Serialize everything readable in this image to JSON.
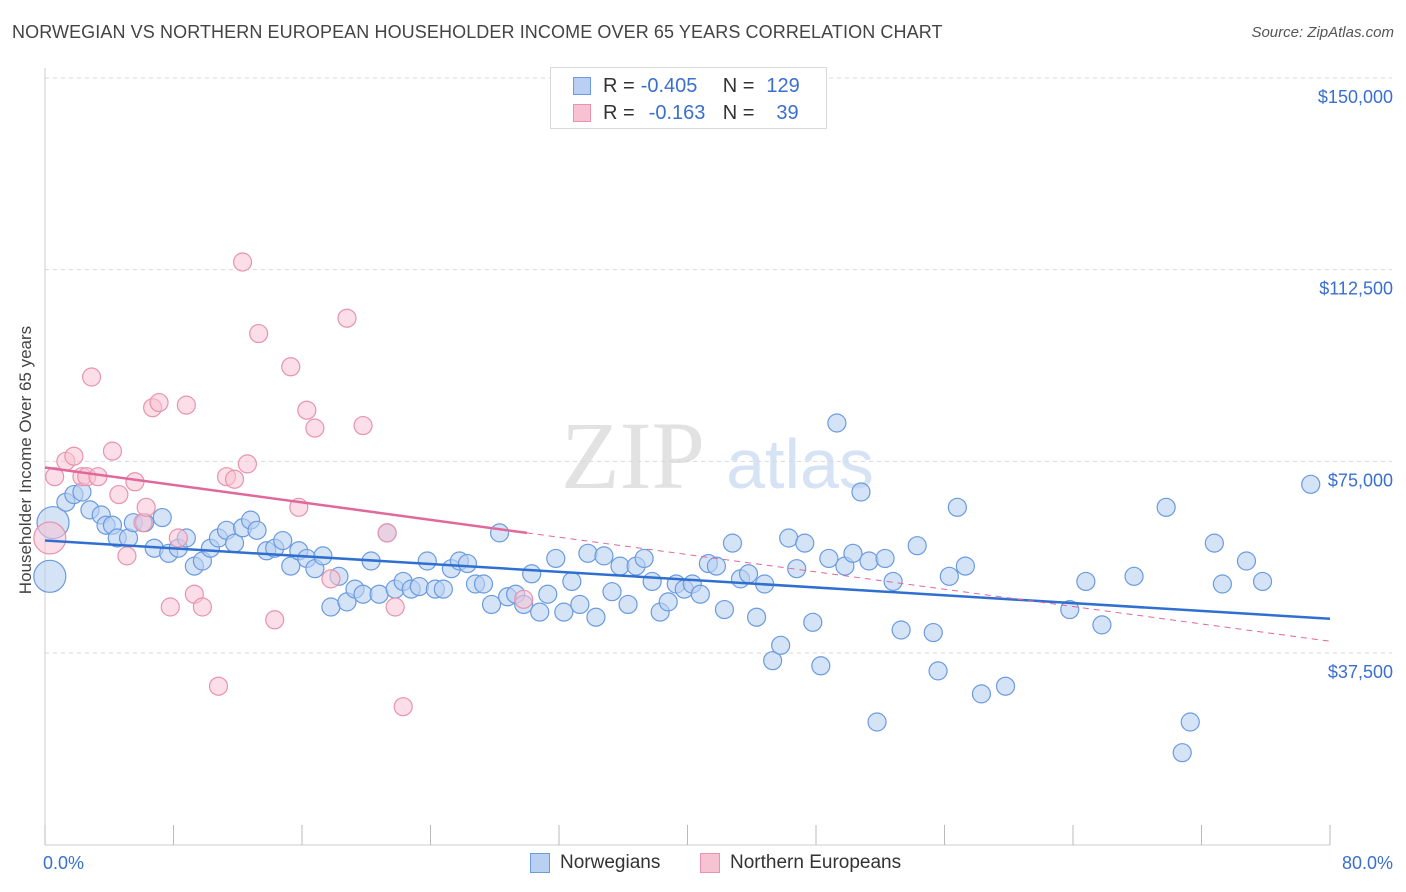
{
  "title": "NORWEGIAN VS NORTHERN EUROPEAN HOUSEHOLDER INCOME OVER 65 YEARS CORRELATION CHART",
  "source": "Source: ZipAtlas.com",
  "watermark": {
    "zip": "ZIP",
    "atlas": "atlas"
  },
  "legend_top": [
    {
      "r_label": "R =",
      "r_value": "-0.405",
      "n_label": "N =",
      "n_value": "129"
    },
    {
      "r_label": "R =",
      "r_value": "-0.163",
      "n_label": "N =",
      "n_value": "39"
    }
  ],
  "colors": {
    "norwegians_fill": "#b9d0f2",
    "norwegians_stroke": "#6a9be0",
    "norwegians_line": "#2e6fd0",
    "northern_fill": "#f7c3d3",
    "northern_stroke": "#e893ad",
    "northern_line": "#e0689a",
    "axis_value_text": "#3a6fd0",
    "grid": "#d8d8d8"
  },
  "chart_data": {
    "type": "scatter",
    "title": "NORWEGIAN VS NORTHERN EUROPEAN HOUSEHOLDER INCOME OVER 65 YEARS CORRELATION CHART",
    "xlabel": "",
    "ylabel": "Householder Income Over 65 years",
    "xlim": [
      0,
      80
    ],
    "ylim": [
      0,
      155000
    ],
    "x_tick_labels": [
      "0.0%",
      "80.0%"
    ],
    "y_ticks": [
      37500,
      75000,
      112500,
      150000
    ],
    "y_tick_labels": [
      "$37,500",
      "$75,000",
      "$112,500",
      "$150,000"
    ],
    "grid": "horizontal dashed",
    "legend_position": "top-center and bottom",
    "series": [
      {
        "name": "Norwegians",
        "r": -0.405,
        "n": 129,
        "trend": {
          "x": [
            0,
            80
          ],
          "y": [
            59500,
            44200
          ]
        },
        "points": [
          [
            0.3,
            52500
          ],
          [
            0.5,
            63000
          ],
          [
            1.3,
            67000
          ],
          [
            1.8,
            68500
          ],
          [
            2.3,
            69000
          ],
          [
            2.8,
            65500
          ],
          [
            3.5,
            64500
          ],
          [
            3.8,
            62500
          ],
          [
            4.2,
            62500
          ],
          [
            4.5,
            60000
          ],
          [
            5.2,
            60000
          ],
          [
            5.5,
            63000
          ],
          [
            6.2,
            63000
          ],
          [
            6.8,
            58000
          ],
          [
            7.3,
            64000
          ],
          [
            7.7,
            57000
          ],
          [
            8.3,
            58000
          ],
          [
            8.8,
            60000
          ],
          [
            9.3,
            54500
          ],
          [
            9.8,
            55500
          ],
          [
            10.3,
            58000
          ],
          [
            10.8,
            60000
          ],
          [
            11.3,
            61500
          ],
          [
            11.8,
            59000
          ],
          [
            12.3,
            62000
          ],
          [
            12.8,
            63500
          ],
          [
            13.2,
            61500
          ],
          [
            13.8,
            57500
          ],
          [
            14.3,
            58000
          ],
          [
            14.8,
            59500
          ],
          [
            15.3,
            54500
          ],
          [
            15.8,
            57500
          ],
          [
            16.3,
            56000
          ],
          [
            16.8,
            54000
          ],
          [
            17.3,
            56500
          ],
          [
            17.8,
            46500
          ],
          [
            18.3,
            52500
          ],
          [
            18.8,
            47500
          ],
          [
            19.3,
            50000
          ],
          [
            19.8,
            49000
          ],
          [
            20.3,
            55500
          ],
          [
            20.8,
            49000
          ],
          [
            21.3,
            61000
          ],
          [
            21.8,
            50000
          ],
          [
            22.3,
            51500
          ],
          [
            22.8,
            50000
          ],
          [
            23.3,
            50500
          ],
          [
            23.8,
            55500
          ],
          [
            24.3,
            50000
          ],
          [
            24.8,
            50000
          ],
          [
            25.3,
            54000
          ],
          [
            25.8,
            55500
          ],
          [
            26.3,
            55000
          ],
          [
            26.8,
            51000
          ],
          [
            27.3,
            51000
          ],
          [
            27.8,
            47000
          ],
          [
            28.3,
            61000
          ],
          [
            28.8,
            48500
          ],
          [
            29.3,
            49000
          ],
          [
            29.8,
            47000
          ],
          [
            30.3,
            53000
          ],
          [
            30.8,
            45500
          ],
          [
            31.3,
            49000
          ],
          [
            31.8,
            56000
          ],
          [
            32.3,
            45500
          ],
          [
            32.8,
            51500
          ],
          [
            33.3,
            47000
          ],
          [
            33.8,
            57000
          ],
          [
            34.3,
            44500
          ],
          [
            34.8,
            56500
          ],
          [
            35.3,
            49500
          ],
          [
            35.8,
            54500
          ],
          [
            36.3,
            47000
          ],
          [
            36.8,
            54500
          ],
          [
            37.3,
            56000
          ],
          [
            37.8,
            51500
          ],
          [
            38.3,
            45500
          ],
          [
            38.8,
            47500
          ],
          [
            39.3,
            51000
          ],
          [
            39.8,
            50000
          ],
          [
            40.3,
            51000
          ],
          [
            40.8,
            49000
          ],
          [
            41.3,
            55000
          ],
          [
            41.8,
            54500
          ],
          [
            42.3,
            46000
          ],
          [
            42.8,
            59000
          ],
          [
            43.3,
            52000
          ],
          [
            43.8,
            53000
          ],
          [
            44.3,
            44500
          ],
          [
            44.8,
            51000
          ],
          [
            45.3,
            36000
          ],
          [
            45.8,
            39000
          ],
          [
            46.3,
            60000
          ],
          [
            46.8,
            54000
          ],
          [
            47.3,
            59000
          ],
          [
            47.8,
            43500
          ],
          [
            48.3,
            35000
          ],
          [
            48.8,
            56000
          ],
          [
            49.3,
            82500
          ],
          [
            49.8,
            54500
          ],
          [
            50.3,
            57000
          ],
          [
            50.8,
            69000
          ],
          [
            51.3,
            55500
          ],
          [
            51.8,
            24000
          ],
          [
            52.3,
            56000
          ],
          [
            52.8,
            51500
          ],
          [
            53.3,
            42000
          ],
          [
            54.3,
            58500
          ],
          [
            55.3,
            41500
          ],
          [
            55.6,
            34000
          ],
          [
            56.3,
            52500
          ],
          [
            56.8,
            66000
          ],
          [
            57.3,
            54500
          ],
          [
            58.3,
            29500
          ],
          [
            59.8,
            31000
          ],
          [
            63.8,
            46000
          ],
          [
            64.8,
            51500
          ],
          [
            65.8,
            43000
          ],
          [
            67.8,
            52500
          ],
          [
            69.8,
            66000
          ],
          [
            70.8,
            18000
          ],
          [
            71.3,
            24000
          ],
          [
            72.8,
            59000
          ],
          [
            73.3,
            51000
          ],
          [
            74.8,
            55500
          ],
          [
            75.8,
            51500
          ],
          [
            78.8,
            70500
          ]
        ]
      },
      {
        "name": "Northern Europeans",
        "r": -0.163,
        "n": 39,
        "trend_solid": {
          "x": [
            0,
            30
          ],
          "y": [
            73800,
            61000
          ]
        },
        "trend_dashed": {
          "x": [
            30,
            80
          ],
          "y": [
            61000,
            39800
          ]
        },
        "points": [
          [
            0.3,
            60000
          ],
          [
            0.6,
            72000
          ],
          [
            1.3,
            75000
          ],
          [
            1.8,
            76000
          ],
          [
            2.3,
            72000
          ],
          [
            2.6,
            72000
          ],
          [
            2.9,
            91500
          ],
          [
            3.3,
            72000
          ],
          [
            4.2,
            77000
          ],
          [
            4.6,
            68500
          ],
          [
            5.1,
            56500
          ],
          [
            5.6,
            71000
          ],
          [
            6.1,
            63000
          ],
          [
            6.3,
            66000
          ],
          [
            6.7,
            85500
          ],
          [
            7.1,
            86500
          ],
          [
            7.8,
            46500
          ],
          [
            8.3,
            60000
          ],
          [
            8.8,
            86000
          ],
          [
            9.3,
            49000
          ],
          [
            9.8,
            46500
          ],
          [
            10.8,
            31000
          ],
          [
            11.3,
            72000
          ],
          [
            11.8,
            71500
          ],
          [
            12.3,
            114000
          ],
          [
            12.6,
            74500
          ],
          [
            13.3,
            100000
          ],
          [
            14.3,
            44000
          ],
          [
            15.3,
            93500
          ],
          [
            15.8,
            66000
          ],
          [
            16.3,
            85000
          ],
          [
            16.8,
            81500
          ],
          [
            17.8,
            52000
          ],
          [
            18.8,
            103000
          ],
          [
            19.8,
            82000
          ],
          [
            21.3,
            61000
          ],
          [
            21.8,
            46500
          ],
          [
            22.3,
            27000
          ],
          [
            29.8,
            48000
          ]
        ]
      }
    ]
  },
  "legend_bottom": [
    {
      "label": "Norwegians"
    },
    {
      "label": "Northern Europeans"
    }
  ]
}
